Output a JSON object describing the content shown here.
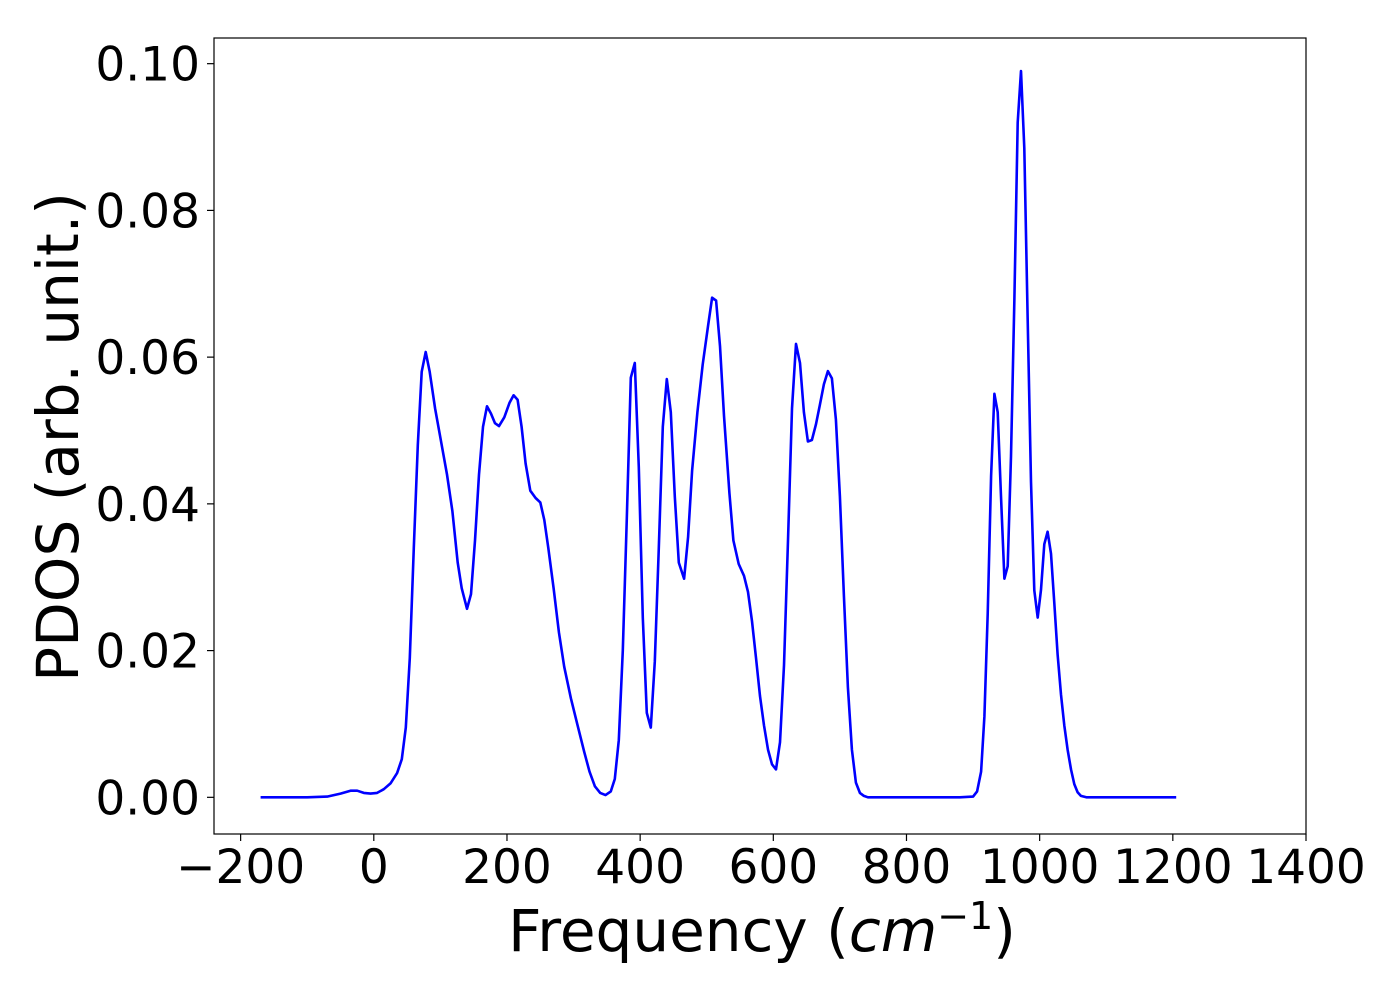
{
  "chart_data": {
    "type": "line",
    "xlabel_text": "Frequency (",
    "xlabel_unit": "cm",
    "xlabel_exp": "−1",
    "xlabel_close": ")",
    "ylabel": "PDOS (arb. unit.)",
    "xlim": [
      -240,
      1400
    ],
    "ylim": [
      -0.005,
      0.1035
    ],
    "x_ticks": [
      -200,
      0,
      200,
      400,
      600,
      800,
      1000,
      1200,
      1400
    ],
    "x_tick_labels": [
      "−200",
      "0",
      "200",
      "400",
      "600",
      "800",
      "1000",
      "1200",
      "1400"
    ],
    "y_ticks": [
      0.0,
      0.02,
      0.04,
      0.06,
      0.08,
      0.1
    ],
    "y_tick_labels": [
      "0.00",
      "0.02",
      "0.04",
      "0.06",
      "0.08",
      "0.10"
    ],
    "grid": false,
    "series": [
      {
        "color": "#0000ff",
        "points": [
          [
            -170,
            0
          ],
          [
            -100,
            0
          ],
          [
            -70,
            0.0001
          ],
          [
            -50,
            0.0005
          ],
          [
            -35,
            0.0009
          ],
          [
            -25,
            0.0009
          ],
          [
            -15,
            0.0006
          ],
          [
            -5,
            0.0005
          ],
          [
            5,
            0.0006
          ],
          [
            15,
            0.0011
          ],
          [
            25,
            0.0019
          ],
          [
            35,
            0.0033
          ],
          [
            42,
            0.0052
          ],
          [
            48,
            0.0095
          ],
          [
            54,
            0.019
          ],
          [
            60,
            0.034
          ],
          [
            66,
            0.048
          ],
          [
            72,
            0.058
          ],
          [
            78,
            0.0607
          ],
          [
            84,
            0.058
          ],
          [
            92,
            0.053
          ],
          [
            100,
            0.049
          ],
          [
            110,
            0.044
          ],
          [
            118,
            0.039
          ],
          [
            126,
            0.032
          ],
          [
            132,
            0.0285
          ],
          [
            140,
            0.0257
          ],
          [
            146,
            0.0277
          ],
          [
            152,
            0.035
          ],
          [
            158,
            0.044
          ],
          [
            164,
            0.0505
          ],
          [
            170,
            0.0533
          ],
          [
            176,
            0.0523
          ],
          [
            182,
            0.051
          ],
          [
            188,
            0.0506
          ],
          [
            196,
            0.0518
          ],
          [
            204,
            0.0538
          ],
          [
            210,
            0.0548
          ],
          [
            216,
            0.0542
          ],
          [
            222,
            0.0505
          ],
          [
            228,
            0.0455
          ],
          [
            235,
            0.0418
          ],
          [
            243,
            0.0408
          ],
          [
            250,
            0.0402
          ],
          [
            256,
            0.0378
          ],
          [
            262,
            0.034
          ],
          [
            270,
            0.0285
          ],
          [
            278,
            0.0225
          ],
          [
            286,
            0.0178
          ],
          [
            296,
            0.0135
          ],
          [
            306,
            0.0098
          ],
          [
            316,
            0.0062
          ],
          [
            324,
            0.0035
          ],
          [
            332,
            0.0015
          ],
          [
            340,
            0.0006
          ],
          [
            348,
            0.0003
          ],
          [
            356,
            0.0008
          ],
          [
            362,
            0.0025
          ],
          [
            368,
            0.0078
          ],
          [
            374,
            0.02
          ],
          [
            380,
            0.038
          ],
          [
            386,
            0.0572
          ],
          [
            392,
            0.0592
          ],
          [
            398,
            0.045
          ],
          [
            404,
            0.0245
          ],
          [
            410,
            0.0115
          ],
          [
            416,
            0.0095
          ],
          [
            422,
            0.0185
          ],
          [
            428,
            0.034
          ],
          [
            434,
            0.0505
          ],
          [
            440,
            0.057
          ],
          [
            446,
            0.0525
          ],
          [
            452,
            0.041
          ],
          [
            458,
            0.032
          ],
          [
            466,
            0.0298
          ],
          [
            472,
            0.0355
          ],
          [
            478,
            0.0445
          ],
          [
            486,
            0.0525
          ],
          [
            494,
            0.059
          ],
          [
            502,
            0.0643
          ],
          [
            508,
            0.0681
          ],
          [
            514,
            0.0677
          ],
          [
            520,
            0.0615
          ],
          [
            526,
            0.052
          ],
          [
            534,
            0.0415
          ],
          [
            540,
            0.035
          ],
          [
            548,
            0.0318
          ],
          [
            556,
            0.0302
          ],
          [
            562,
            0.028
          ],
          [
            568,
            0.024
          ],
          [
            574,
            0.019
          ],
          [
            580,
            0.0138
          ],
          [
            586,
            0.0098
          ],
          [
            592,
            0.0065
          ],
          [
            598,
            0.0045
          ],
          [
            604,
            0.0038
          ],
          [
            610,
            0.0075
          ],
          [
            616,
            0.018
          ],
          [
            622,
            0.035
          ],
          [
            628,
            0.053
          ],
          [
            634,
            0.0618
          ],
          [
            640,
            0.0592
          ],
          [
            646,
            0.0525
          ],
          [
            652,
            0.0485
          ],
          [
            658,
            0.0487
          ],
          [
            664,
            0.0508
          ],
          [
            670,
            0.0535
          ],
          [
            676,
            0.0563
          ],
          [
            682,
            0.0581
          ],
          [
            688,
            0.0571
          ],
          [
            694,
            0.0515
          ],
          [
            700,
            0.041
          ],
          [
            706,
            0.0275
          ],
          [
            712,
            0.015
          ],
          [
            718,
            0.0065
          ],
          [
            724,
            0.002
          ],
          [
            730,
            0.0006
          ],
          [
            736,
            0.0002
          ],
          [
            742,
            0
          ],
          [
            880,
            0
          ],
          [
            900,
            0.0001
          ],
          [
            906,
            0.0008
          ],
          [
            912,
            0.0035
          ],
          [
            917,
            0.011
          ],
          [
            922,
            0.025
          ],
          [
            927,
            0.0438
          ],
          [
            932,
            0.055
          ],
          [
            937,
            0.0525
          ],
          [
            942,
            0.041
          ],
          [
            947,
            0.0298
          ],
          [
            952,
            0.0315
          ],
          [
            957,
            0.0465
          ],
          [
            962,
            0.068
          ],
          [
            967,
            0.092
          ],
          [
            972,
            0.099
          ],
          [
            977,
            0.0885
          ],
          [
            982,
            0.065
          ],
          [
            987,
            0.043
          ],
          [
            992,
            0.0282
          ],
          [
            997,
            0.0245
          ],
          [
            1002,
            0.0283
          ],
          [
            1007,
            0.0345
          ],
          [
            1012,
            0.0362
          ],
          [
            1017,
            0.0332
          ],
          [
            1022,
            0.0265
          ],
          [
            1027,
            0.0195
          ],
          [
            1032,
            0.014
          ],
          [
            1037,
            0.0098
          ],
          [
            1042,
            0.0065
          ],
          [
            1047,
            0.0038
          ],
          [
            1052,
            0.0018
          ],
          [
            1057,
            0.0007
          ],
          [
            1062,
            0.0002
          ],
          [
            1070,
            0
          ],
          [
            1205,
            0
          ]
        ]
      }
    ]
  }
}
